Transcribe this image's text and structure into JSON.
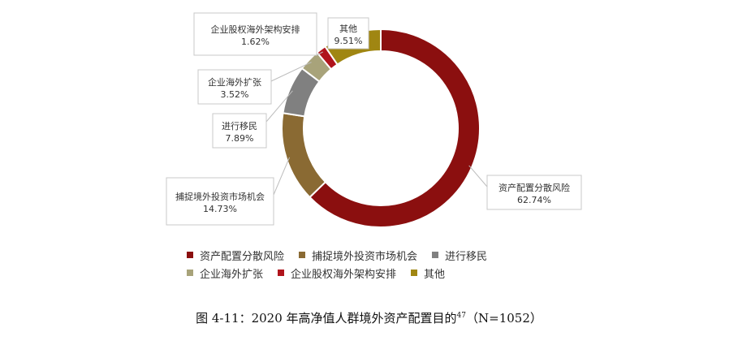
{
  "chart_data": {
    "type": "pie",
    "donut": true,
    "slices": [
      {
        "label": "资产配置分散风险",
        "value": 62.74,
        "value_label": "62.74%",
        "color": "#8b0f0f"
      },
      {
        "label": "捕捉境外投资市场机会",
        "value": 14.73,
        "value_label": "14.73%",
        "color": "#8a6a33"
      },
      {
        "label": "进行移民",
        "value": 7.89,
        "value_label": "7.89%",
        "color": "#808080"
      },
      {
        "label": "企业海外扩张",
        "value": 3.52,
        "value_label": "3.52%",
        "color": "#a8a37a"
      },
      {
        "label": "企业股权海外架构安排",
        "value": 1.62,
        "value_label": "1.62%",
        "color": "#b0141c"
      },
      {
        "label": "其他",
        "value": 9.51,
        "value_label": "9.51%",
        "color": "#a08612"
      }
    ],
    "legend_placement": "bottom",
    "legend_rows": [
      [
        0,
        1,
        2
      ],
      [
        3,
        4,
        5
      ]
    ]
  },
  "caption": {
    "text": "图 4-11：2020 年高净值人群境外资产配置目的",
    "superscript": "47",
    "suffix": "（N=1052）"
  }
}
